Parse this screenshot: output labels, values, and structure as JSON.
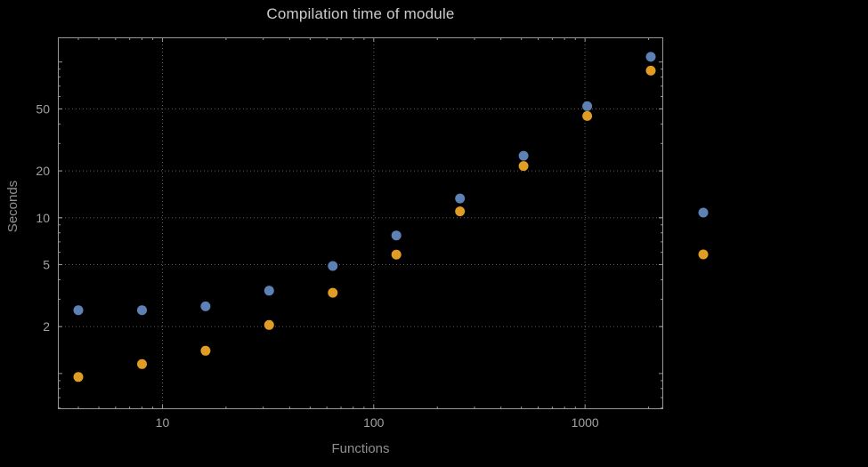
{
  "chart_data": {
    "type": "scatter",
    "title": "Compilation time of module",
    "xlabel": "Functions",
    "ylabel": "Seconds",
    "x_scale": "log",
    "y_scale": "log",
    "xlim": [
      3.2,
      2345
    ],
    "ylim": [
      0.59,
      144
    ],
    "x_ticks": [
      10,
      100,
      1000
    ],
    "y_ticks": [
      2,
      5,
      10,
      20,
      50
    ],
    "grid": "dotted",
    "x": [
      4,
      8,
      16,
      32,
      64,
      128,
      256,
      512,
      1024,
      2048
    ],
    "series": [
      {
        "name": "blue",
        "color": "#5e81b5",
        "values": [
          2.55,
          2.55,
          2.7,
          3.4,
          4.9,
          7.7,
          13.3,
          25,
          52,
          108
        ]
      },
      {
        "name": "orange",
        "color": "#e19c24",
        "values": [
          0.95,
          1.15,
          1.4,
          2.05,
          3.3,
          5.8,
          11,
          21.5,
          45,
          88
        ]
      }
    ],
    "legend": {
      "position": "right-center",
      "labels_visible": false,
      "markers": [
        {
          "name": "blue",
          "color": "#5e81b5"
        },
        {
          "name": "orange",
          "color": "#e19c24"
        }
      ]
    }
  },
  "colors": {
    "background": "#000000",
    "frame": "#999999",
    "grid": "#5f5f5f",
    "title": "#cccccc",
    "tick_label": "#a0a0a0",
    "axis_label": "#8f8f8f"
  }
}
